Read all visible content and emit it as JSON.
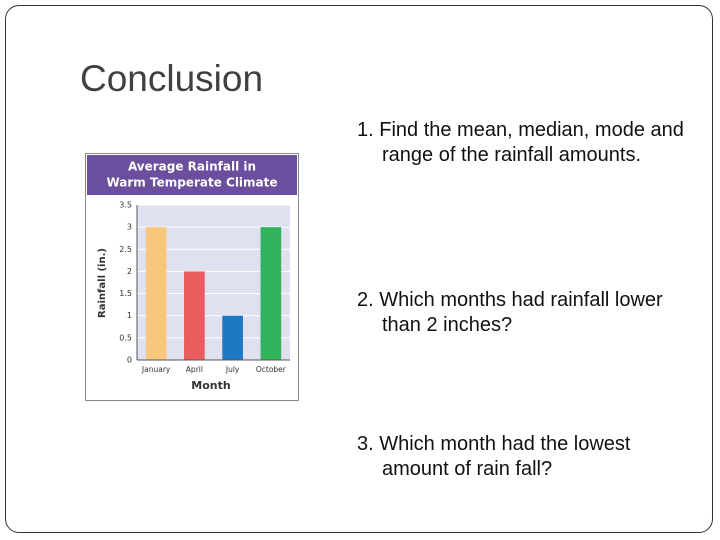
{
  "slide": {
    "title": "Conclusion",
    "questions": [
      "1. Find the mean, median, mode and range of the rainfall amounts.",
      "2. Which months had rainfall lower than 2 inches?",
      "3.  Which month had the lowest amount of rain fall?"
    ]
  },
  "chart_data": {
    "type": "bar",
    "title": [
      "Average Rainfall in",
      "Warm Temperate Climate"
    ],
    "y_label": "Rainfall (in.)",
    "x_label": "Month",
    "categories": [
      "January",
      "April",
      "July",
      "October"
    ],
    "values": [
      3,
      2,
      1,
      3
    ],
    "colors": [
      "#f8c77c",
      "#ec5b5e",
      "#1f78c4",
      "#33b45c"
    ],
    "ylim": [
      0,
      3.5
    ],
    "yticks": [
      0,
      0.5,
      1,
      1.5,
      2,
      2.5,
      3,
      3.5
    ],
    "grid": true
  }
}
